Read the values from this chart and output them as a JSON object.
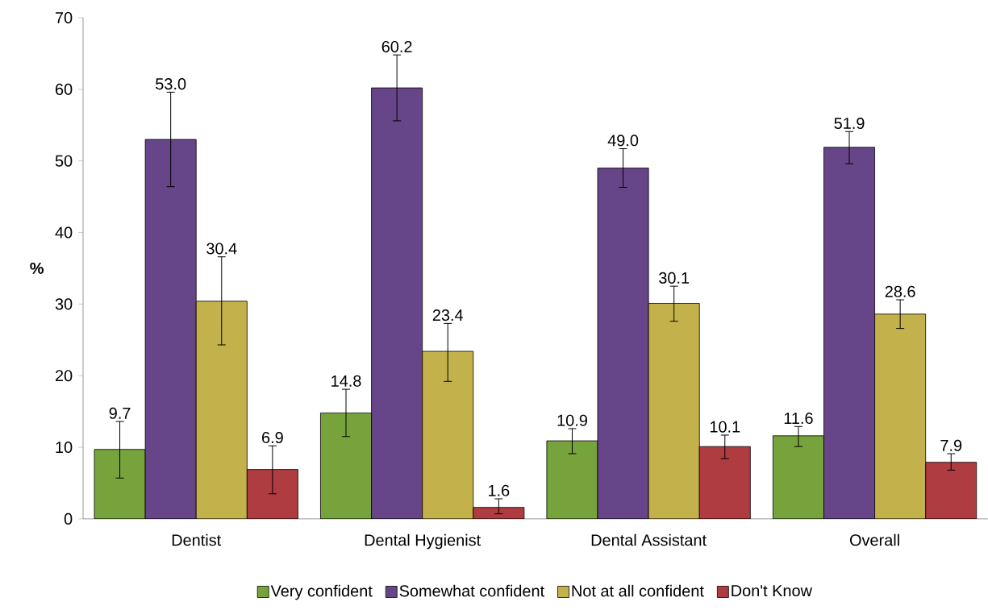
{
  "chart_data": {
    "type": "bar",
    "ylabel": "%",
    "categories": [
      "Dentist",
      "Dental Hygienist",
      "Dental Assistant",
      "Overall"
    ],
    "series": [
      {
        "name": "Very confident",
        "color": "#77a33c",
        "values": [
          9.7,
          14.8,
          10.9,
          11.6
        ],
        "value_labels": [
          "9.7",
          "14.8",
          "10.9",
          "11.6"
        ],
        "errors": [
          [
            5.7,
            13.6
          ],
          [
            11.5,
            18.1
          ],
          [
            9.1,
            12.6
          ],
          [
            10.1,
            12.9
          ]
        ]
      },
      {
        "name": "Somewhat confident",
        "color": "#664589",
        "values": [
          53.0,
          60.2,
          49.0,
          51.9
        ],
        "value_labels": [
          "53.0",
          "60.2",
          "49.0",
          "51.9"
        ],
        "errors": [
          [
            46.4,
            59.6
          ],
          [
            55.6,
            64.8
          ],
          [
            46.3,
            51.7
          ],
          [
            49.6,
            54.1
          ]
        ]
      },
      {
        "name": "Not at all confident",
        "color": "#c3b14b",
        "values": [
          30.4,
          23.4,
          30.1,
          28.6
        ],
        "value_labels": [
          "30.4",
          "23.4",
          "30.1",
          "28.6"
        ],
        "errors": [
          [
            24.3,
            36.6
          ],
          [
            19.2,
            27.3
          ],
          [
            27.6,
            32.5
          ],
          [
            26.6,
            30.6
          ]
        ]
      },
      {
        "name": "Don't Know",
        "color": "#ae3c40",
        "values": [
          6.9,
          1.6,
          10.1,
          7.9
        ],
        "value_labels": [
          "6.9",
          "1.6",
          "10.1",
          "7.9"
        ],
        "errors": [
          [
            3.5,
            10.2
          ],
          [
            0.7,
            2.8
          ],
          [
            8.4,
            11.7
          ],
          [
            6.8,
            9.1
          ]
        ]
      }
    ],
    "ylim": [
      0,
      70
    ],
    "yticks": [
      0,
      10,
      20,
      30,
      40,
      50,
      60,
      70
    ],
    "grid": false,
    "legend": "bottom"
  }
}
